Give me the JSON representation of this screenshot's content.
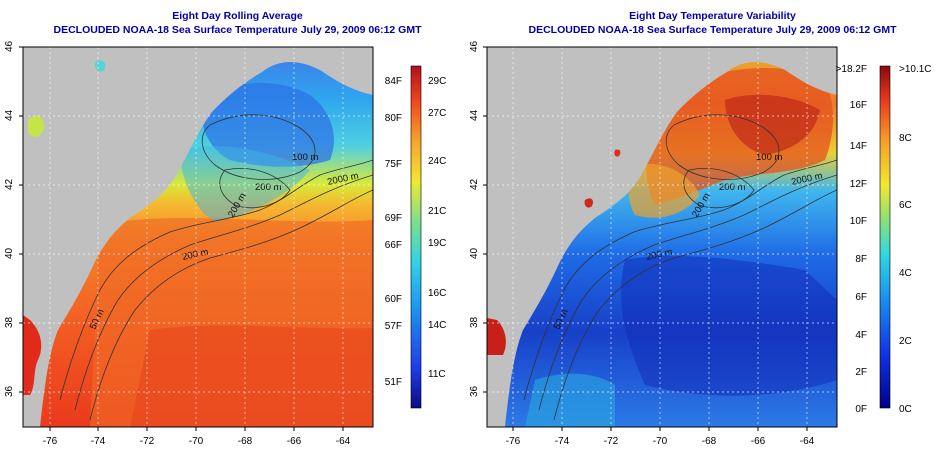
{
  "colors": {
    "title": "#0000aa",
    "land": "#c0c0c0",
    "contour": "#333333"
  },
  "map_left": {
    "title_line1": "Eight Day Rolling Average",
    "title_line2": "DECLOUDED NOAA-18 Sea Surface Temperature July 29, 2009 06:12 GMT",
    "lat_ticks": [
      "46",
      "44",
      "42",
      "40",
      "38",
      "36"
    ],
    "lon_ticks": [
      "-76",
      "-74",
      "-72",
      "-70",
      "-68",
      "-66",
      "-64"
    ],
    "contour_labels": [
      "100 m",
      "200 m",
      "200 m",
      "2000 m",
      "200 m",
      "50 m"
    ],
    "colorbar": {
      "f_labels": [
        "84F",
        "80F",
        "75F",
        "69F",
        "66F",
        "60F",
        "57F",
        "51F"
      ],
      "c_labels": [
        "29C",
        "27C",
        "24C",
        "21C",
        "19C",
        "16C",
        "14C",
        "11C"
      ]
    }
  },
  "map_right": {
    "title_line1": "Eight Day Temperature Variability",
    "title_line2": "DECLOUDED NOAA-18 Sea Surface Temperature July 29, 2009 06:12 GMT",
    "lat_ticks": [
      "46",
      "44",
      "42",
      "40",
      "38",
      "36"
    ],
    "lon_ticks": [
      "-76",
      "-74",
      "-72",
      "-70",
      "-68",
      "-66",
      "-64"
    ],
    "contour_labels": [
      "100 m",
      "200 m",
      "200 m",
      "2000 m",
      "200 m",
      "50 m"
    ],
    "colorbar": {
      "f_labels": [
        ">18.2F",
        "16F",
        "14F",
        "12F",
        "10F",
        "8F",
        "6F",
        "4F",
        "2F",
        "0F"
      ],
      "c_labels": [
        ">10.1C",
        "8C",
        "6C",
        "4C",
        "2C",
        "0C"
      ]
    }
  }
}
